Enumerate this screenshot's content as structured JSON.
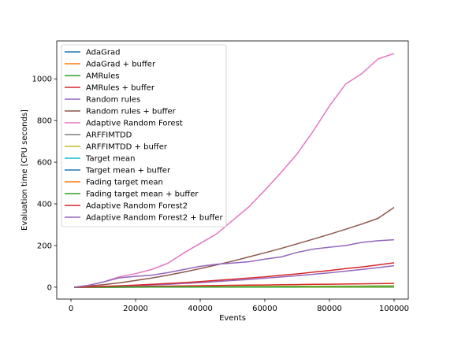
{
  "chart_data": {
    "type": "line",
    "xlabel": "Events",
    "ylabel": "Evaluation time [CPU seconds]",
    "xlim": [
      -4400,
      104400
    ],
    "ylim": [
      -57,
      1182
    ],
    "x_ticks": [
      0,
      20000,
      40000,
      60000,
      80000,
      100000
    ],
    "y_ticks": [
      0,
      200,
      400,
      600,
      800,
      1000
    ],
    "grid": false,
    "legend_position": "top-left",
    "x": [
      1000,
      5000,
      10000,
      15000,
      20000,
      25000,
      30000,
      35000,
      40000,
      45000,
      50000,
      55000,
      60000,
      65000,
      70000,
      75000,
      80000,
      85000,
      90000,
      95000,
      100000
    ],
    "series": [
      {
        "name": "AdaGrad",
        "color": "#1f77b4",
        "values": [
          0,
          0.1,
          0.2,
          0.3,
          0.4,
          0.5,
          0.6,
          0.7,
          0.8,
          0.9,
          1.0,
          1.1,
          1.2,
          1.3,
          1.4,
          1.5,
          1.6,
          1.7,
          1.8,
          1.9,
          2.0
        ]
      },
      {
        "name": "AdaGrad + buffer",
        "color": "#ff7f0e",
        "values": [
          0,
          0.1,
          0.2,
          0.4,
          0.5,
          0.6,
          0.7,
          0.9,
          1.0,
          1.1,
          1.2,
          1.4,
          1.5,
          1.6,
          1.7,
          1.9,
          2.0,
          2.1,
          2.2,
          2.4,
          2.5
        ]
      },
      {
        "name": "AMRules",
        "color": "#2ca02c",
        "values": [
          0,
          0.3,
          0.6,
          0.9,
          1.2,
          1.5,
          1.8,
          2.1,
          2.4,
          2.7,
          3.0,
          3.3,
          3.6,
          3.9,
          4.2,
          4.5,
          4.8,
          5.1,
          5.4,
          5.7,
          6.0
        ]
      },
      {
        "name": "AMRules + buffer",
        "color": "#d62728",
        "values": [
          0,
          0.8,
          1.8,
          2.7,
          3.6,
          4.5,
          5.4,
          6.3,
          7.2,
          8.1,
          9.0,
          9.9,
          10.8,
          11.7,
          12.6,
          13.5,
          14.4,
          15.3,
          16.2,
          17.1,
          18.0
        ]
      },
      {
        "name": "Random rules",
        "color": "#9467bd",
        "values": [
          0,
          1.5,
          3.5,
          5.5,
          8,
          11,
          14,
          18,
          22,
          27,
          32,
          37,
          43,
          49,
          55,
          62,
          69,
          77,
          85,
          94,
          103
        ]
      },
      {
        "name": "Random rules + buffer",
        "color": "#8c564b",
        "values": [
          0,
          5,
          12,
          21,
          32,
          44,
          58,
          73,
          89,
          107,
          125,
          145,
          165,
          186,
          208,
          231,
          254,
          278,
          303,
          330,
          383
        ]
      },
      {
        "name": "Adaptive Random Forest",
        "color": "#e377c2",
        "values": [
          0,
          7,
          25,
          50,
          65,
          85,
          115,
          165,
          210,
          255,
          320,
          385,
          465,
          550,
          640,
          750,
          870,
          975,
          1025,
          1095,
          1122
        ]
      },
      {
        "name": "ARFFIMTDD",
        "color": "#7f7f7f",
        "values": [
          0,
          0.2,
          0.4,
          0.6,
          0.8,
          1.0,
          1.2,
          1.4,
          1.6,
          1.8,
          2.0,
          2.2,
          2.4,
          2.6,
          2.8,
          3.0,
          3.2,
          3.4,
          3.6,
          3.8,
          4.0
        ]
      },
      {
        "name": "ARFFIMTDD + buffer",
        "color": "#bcbd22",
        "values": [
          0,
          0.2,
          0.5,
          0.7,
          1.0,
          1.2,
          1.5,
          1.7,
          2.0,
          2.2,
          2.5,
          2.7,
          3.0,
          3.2,
          3.5,
          3.7,
          4.0,
          4.2,
          4.5,
          4.7,
          5.0
        ]
      },
      {
        "name": "Target mean",
        "color": "#17becf",
        "values": [
          0,
          0.05,
          0.1,
          0.15,
          0.2,
          0.25,
          0.3,
          0.35,
          0.4,
          0.45,
          0.5,
          0.55,
          0.6,
          0.65,
          0.7,
          0.75,
          0.8,
          0.85,
          0.9,
          0.95,
          1.0
        ]
      },
      {
        "name": "Target mean + buffer",
        "color": "#1f77b4",
        "values": [
          0,
          0.06,
          0.12,
          0.18,
          0.24,
          0.3,
          0.36,
          0.42,
          0.48,
          0.54,
          0.6,
          0.66,
          0.72,
          0.78,
          0.84,
          0.9,
          0.96,
          1.02,
          1.08,
          1.14,
          1.2
        ]
      },
      {
        "name": "Fading target mean",
        "color": "#ff7f0e",
        "values": [
          0,
          0.05,
          0.1,
          0.15,
          0.2,
          0.25,
          0.3,
          0.35,
          0.4,
          0.45,
          0.5,
          0.55,
          0.6,
          0.65,
          0.7,
          0.75,
          0.8,
          0.85,
          0.9,
          0.95,
          1.0
        ]
      },
      {
        "name": "Fading target mean + buffer",
        "color": "#2ca02c",
        "values": [
          0,
          0.07,
          0.14,
          0.21,
          0.28,
          0.35,
          0.42,
          0.49,
          0.56,
          0.63,
          0.7,
          0.77,
          0.84,
          0.91,
          0.98,
          1.05,
          1.12,
          1.19,
          1.26,
          1.33,
          1.4
        ]
      },
      {
        "name": "Adaptive Random Forest2",
        "color": "#d62728",
        "values": [
          0,
          1.5,
          4,
          7,
          10,
          14,
          18,
          22,
          27,
          33,
          38,
          44,
          50,
          57,
          64,
          72,
          80,
          89,
          97,
          107,
          117
        ]
      },
      {
        "name": "Adaptive Random Forest2 + buffer",
        "color": "#9467bd",
        "values": [
          0,
          8,
          25,
          45,
          52,
          58,
          70,
          85,
          100,
          110,
          116,
          122,
          135,
          145,
          167,
          183,
          192,
          200,
          215,
          223,
          228
        ]
      }
    ]
  }
}
